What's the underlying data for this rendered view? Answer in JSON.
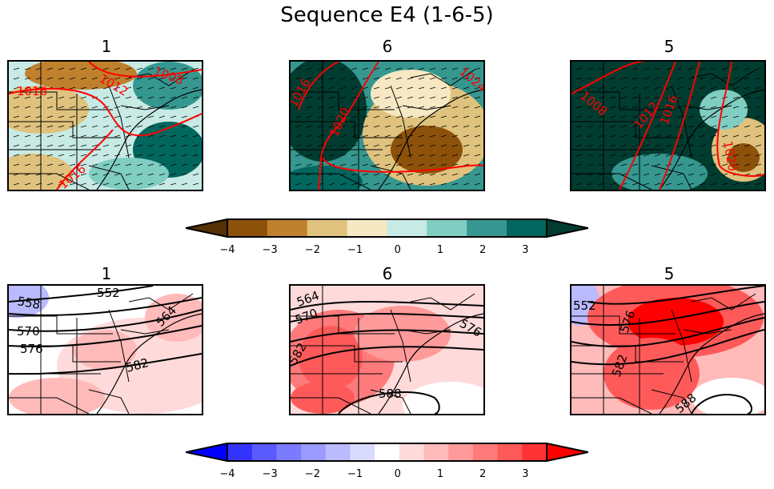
{
  "figure": {
    "title": "Sequence E4 (1-6-5)"
  },
  "chart_data": [
    {
      "type": "heatmap",
      "panel_title": "1",
      "row": "top",
      "contour_labels": [
        "1016",
        "1012",
        "1008",
        "1016"
      ],
      "contour_color": "#ff0000",
      "dominant": "mixed"
    },
    {
      "type": "heatmap",
      "panel_title": "6",
      "row": "top",
      "contour_labels": [
        "1016",
        "1020",
        "1024"
      ],
      "contour_color": "#ff0000",
      "dominant": "brown-east"
    },
    {
      "type": "heatmap",
      "panel_title": "5",
      "row": "top",
      "contour_labels": [
        "1008",
        "1012",
        "1016",
        "1020"
      ],
      "contour_color": "#ff0000",
      "dominant": "teal"
    },
    {
      "type": "heatmap",
      "panel_title": "1",
      "row": "bottom",
      "contour_labels": [
        "552",
        "558",
        "570",
        "576",
        "582",
        "564"
      ],
      "contour_color": "#000000",
      "dominant": "light-red"
    },
    {
      "type": "heatmap",
      "panel_title": "6",
      "row": "bottom",
      "contour_labels": [
        "564",
        "570",
        "576",
        "582",
        "588"
      ],
      "contour_color": "#000000",
      "dominant": "red"
    },
    {
      "type": "heatmap",
      "panel_title": "5",
      "row": "bottom",
      "contour_labels": [
        "552",
        "576",
        "582",
        "588"
      ],
      "contour_color": "#000000",
      "dominant": "strong-red"
    }
  ],
  "colorbar_top": {
    "ticks": [
      "−4",
      "−3",
      "−2",
      "−1",
      "0",
      "1",
      "2",
      "3"
    ],
    "colors": [
      "#543005",
      "#8c510a",
      "#bf812d",
      "#dfc27d",
      "#f6e8c3",
      "#c7eae5",
      "#80cdc1",
      "#35978f",
      "#01665e",
      "#003c30"
    ]
  },
  "colorbar_bottom": {
    "ticks": [
      "−4",
      "−3",
      "−2",
      "−1",
      "0",
      "1",
      "2",
      "3"
    ],
    "colors": [
      "#0000ff",
      "#3333ff",
      "#5a5aff",
      "#7b7bff",
      "#9a9aff",
      "#babaff",
      "#dadaff",
      "#ffffff",
      "#ffdada",
      "#ffbaba",
      "#ff9a9a",
      "#ff7b7b",
      "#ff5a5a",
      "#ff3333",
      "#ff0000"
    ]
  }
}
